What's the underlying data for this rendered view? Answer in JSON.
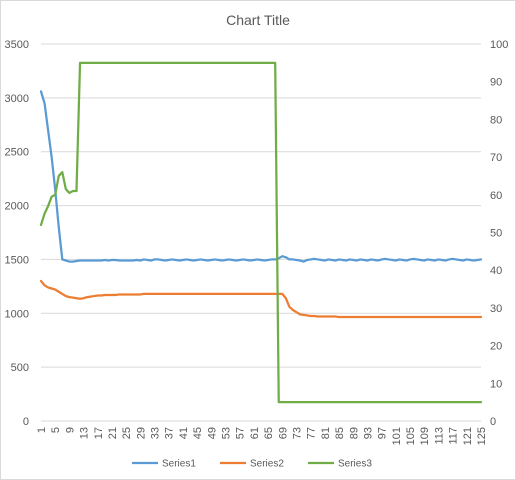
{
  "chart_data": {
    "type": "line",
    "title": "Chart Title",
    "x": [
      1,
      2,
      3,
      4,
      5,
      6,
      7,
      8,
      9,
      10,
      11,
      12,
      13,
      14,
      15,
      16,
      17,
      18,
      19,
      20,
      21,
      22,
      23,
      24,
      25,
      26,
      27,
      28,
      29,
      30,
      31,
      32,
      33,
      34,
      35,
      36,
      37,
      38,
      39,
      40,
      41,
      42,
      43,
      44,
      45,
      46,
      47,
      48,
      49,
      50,
      51,
      52,
      53,
      54,
      55,
      56,
      57,
      58,
      59,
      60,
      61,
      62,
      63,
      64,
      65,
      66,
      67,
      68,
      69,
      70,
      71,
      72,
      73,
      74,
      75,
      76,
      77,
      78,
      79,
      80,
      81,
      82,
      83,
      84,
      85,
      86,
      87,
      88,
      89,
      90,
      91,
      92,
      93,
      94,
      95,
      96,
      97,
      98,
      99,
      100,
      101,
      102,
      103,
      104,
      105,
      106,
      107,
      108,
      109,
      110,
      111,
      112,
      113,
      114,
      115,
      116,
      117,
      118,
      119,
      120,
      121,
      122,
      123,
      124,
      125
    ],
    "x_tick_labels": [
      "1",
      "5",
      "9",
      "13",
      "17",
      "21",
      "25",
      "29",
      "33",
      "37",
      "41",
      "45",
      "49",
      "53",
      "57",
      "61",
      "65",
      "69",
      "73",
      "77",
      "81",
      "85",
      "89",
      "93",
      "97",
      "101",
      "105",
      "109",
      "113",
      "117",
      "121",
      "125"
    ],
    "ylim_left": [
      0,
      3500
    ],
    "yticks_left": [
      "0",
      "500",
      "1000",
      "1500",
      "2000",
      "2500",
      "3000",
      "3500"
    ],
    "ylim_right": [
      0,
      100
    ],
    "yticks_right": [
      "0",
      "10",
      "20",
      "30",
      "40",
      "50",
      "60",
      "70",
      "80",
      "90",
      "100"
    ],
    "gridlines": true,
    "legend_position": "bottom",
    "series": [
      {
        "name": "Series1",
        "color": "#5b9bd5",
        "axis": "left",
        "values": [
          3060,
          2950,
          2700,
          2450,
          2150,
          1800,
          1500,
          1490,
          1480,
          1480,
          1485,
          1490,
          1490,
          1490,
          1490,
          1490,
          1490,
          1490,
          1495,
          1490,
          1495,
          1495,
          1490,
          1490,
          1490,
          1490,
          1490,
          1495,
          1490,
          1500,
          1495,
          1490,
          1500,
          1500,
          1495,
          1490,
          1495,
          1500,
          1495,
          1490,
          1495,
          1500,
          1495,
          1490,
          1495,
          1500,
          1495,
          1490,
          1495,
          1500,
          1495,
          1490,
          1495,
          1500,
          1495,
          1490,
          1495,
          1500,
          1495,
          1490,
          1495,
          1500,
          1495,
          1490,
          1495,
          1500,
          1500,
          1510,
          1530,
          1520,
          1500,
          1500,
          1495,
          1490,
          1480,
          1495,
          1500,
          1505,
          1500,
          1495,
          1490,
          1500,
          1495,
          1490,
          1500,
          1495,
          1490,
          1500,
          1495,
          1490,
          1500,
          1495,
          1490,
          1500,
          1495,
          1490,
          1500,
          1505,
          1500,
          1495,
          1490,
          1500,
          1495,
          1490,
          1500,
          1505,
          1500,
          1495,
          1490,
          1500,
          1495,
          1490,
          1500,
          1495,
          1490,
          1500,
          1505,
          1500,
          1495,
          1490,
          1500,
          1495,
          1490,
          1495,
          1500
        ]
      },
      {
        "name": "Series2",
        "color": "#ed7d31",
        "axis": "left",
        "values": [
          1300,
          1260,
          1240,
          1230,
          1220,
          1200,
          1180,
          1160,
          1150,
          1145,
          1140,
          1135,
          1140,
          1150,
          1155,
          1160,
          1165,
          1165,
          1170,
          1170,
          1170,
          1170,
          1175,
          1175,
          1175,
          1175,
          1175,
          1175,
          1175,
          1180,
          1180,
          1180,
          1180,
          1180,
          1180,
          1180,
          1180,
          1180,
          1180,
          1180,
          1180,
          1180,
          1180,
          1180,
          1180,
          1180,
          1180,
          1180,
          1180,
          1180,
          1180,
          1180,
          1180,
          1180,
          1180,
          1180,
          1180,
          1180,
          1180,
          1180,
          1180,
          1180,
          1180,
          1180,
          1180,
          1180,
          1180,
          1180,
          1180,
          1140,
          1060,
          1030,
          1010,
          990,
          985,
          980,
          975,
          975,
          970,
          970,
          970,
          970,
          970,
          970,
          965,
          965,
          965,
          965,
          965,
          965,
          965,
          965,
          965,
          965,
          965,
          965,
          965,
          965,
          965,
          965,
          965,
          965,
          965,
          965,
          965,
          965,
          965,
          965,
          965,
          965,
          965,
          965,
          965,
          965,
          965,
          965,
          965,
          965,
          965,
          965,
          965,
          965,
          965,
          965,
          965
        ]
      },
      {
        "name": "Series3",
        "color": "#70ad47",
        "axis": "right",
        "values": [
          52,
          55,
          57,
          59.5,
          60,
          65,
          66,
          61.5,
          60.5,
          61,
          61,
          95,
          95,
          95,
          95,
          95,
          95,
          95,
          95,
          95,
          95,
          95,
          95,
          95,
          95,
          95,
          95,
          95,
          95,
          95,
          95,
          95,
          95,
          95,
          95,
          95,
          95,
          95,
          95,
          95,
          95,
          95,
          95,
          95,
          95,
          95,
          95,
          95,
          95,
          95,
          95,
          95,
          95,
          95,
          95,
          95,
          95,
          95,
          95,
          95,
          95,
          95,
          95,
          95,
          95,
          95,
          95,
          5,
          5,
          5,
          5,
          5,
          5,
          5,
          5,
          5,
          5,
          5,
          5,
          5,
          5,
          5,
          5,
          5,
          5,
          5,
          5,
          5,
          5,
          5,
          5,
          5,
          5,
          5,
          5,
          5,
          5,
          5,
          5,
          5,
          5,
          5,
          5,
          5,
          5,
          5,
          5,
          5,
          5,
          5,
          5,
          5,
          5,
          5,
          5,
          5,
          5,
          5,
          5,
          5,
          5,
          5,
          5,
          5,
          5
        ]
      }
    ]
  }
}
